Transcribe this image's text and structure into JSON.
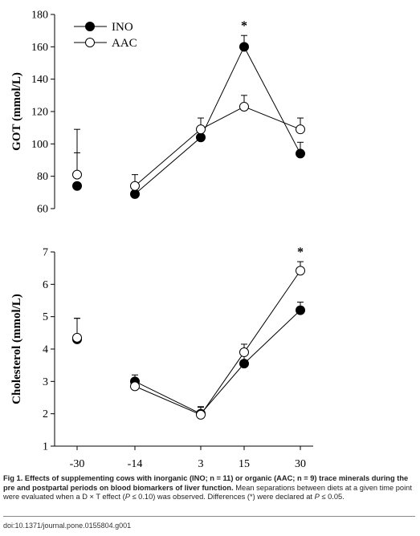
{
  "chart_data": [
    {
      "type": "line",
      "ylabel": "GOT (mmol/L)",
      "xlabel": "",
      "categories": [
        "-30",
        "-14",
        "3",
        "15",
        "30"
      ],
      "ylim": [
        60,
        180
      ],
      "yticks": [
        "60",
        "80",
        "100",
        "120",
        "140",
        "160",
        "180"
      ],
      "legend": {
        "placement": "top-left",
        "entries": [
          "INO",
          "AAC"
        ]
      },
      "annotations": [
        {
          "text": "*",
          "category": "15"
        }
      ],
      "series": [
        {
          "name": "INO",
          "marker": "filled-circle",
          "values": [
            74,
            69,
            104,
            160,
            94
          ],
          "error": [
            null,
            null,
            null,
            7,
            7
          ]
        },
        {
          "name": "AAC",
          "marker": "open-circle",
          "values": [
            81,
            74,
            109,
            123,
            109
          ],
          "error": [
            28,
            7,
            7,
            7,
            7
          ]
        }
      ]
    },
    {
      "type": "line",
      "ylabel": "Cholesterol (mmol/L)",
      "xlabel": "",
      "categories": [
        "-30",
        "-14",
        "3",
        "15",
        "30"
      ],
      "ylim": [
        1,
        7
      ],
      "yticks": [
        "1",
        "2",
        "3",
        "4",
        "5",
        "6",
        "7"
      ],
      "annotations": [
        {
          "text": "*",
          "category": "30"
        }
      ],
      "series": [
        {
          "name": "INO",
          "marker": "filled-circle",
          "values": [
            4.3,
            3.0,
            2.0,
            3.55,
            5.2
          ],
          "error": [
            0.65,
            0.2,
            0.2,
            0.25,
            0.25
          ]
        },
        {
          "name": "AAC",
          "marker": "open-circle",
          "values": [
            4.35,
            2.85,
            1.97,
            3.9,
            6.42
          ],
          "error": [
            0.6,
            null,
            0.25,
            0.25,
            0.28
          ]
        }
      ]
    }
  ],
  "caption": {
    "label": "Fig 1.",
    "title": "Effects of supplementing cows with inorganic (INO; n = 11) or organic (AAC; n = 9) trace minerals during the pre and postpartal periods on blood biomarkers of liver function.",
    "text_before_p1": "Mean separations between diets at a given time point were evaluated when a D × T effect (",
    "p_symbol": "P",
    "p1_rest": " ≤ 0.10) was observed. Differences (*) were declared at ",
    "p2_rest": " ≤ 0.05."
  },
  "doi": "doi:10.1371/journal.pone.0155804.g001"
}
